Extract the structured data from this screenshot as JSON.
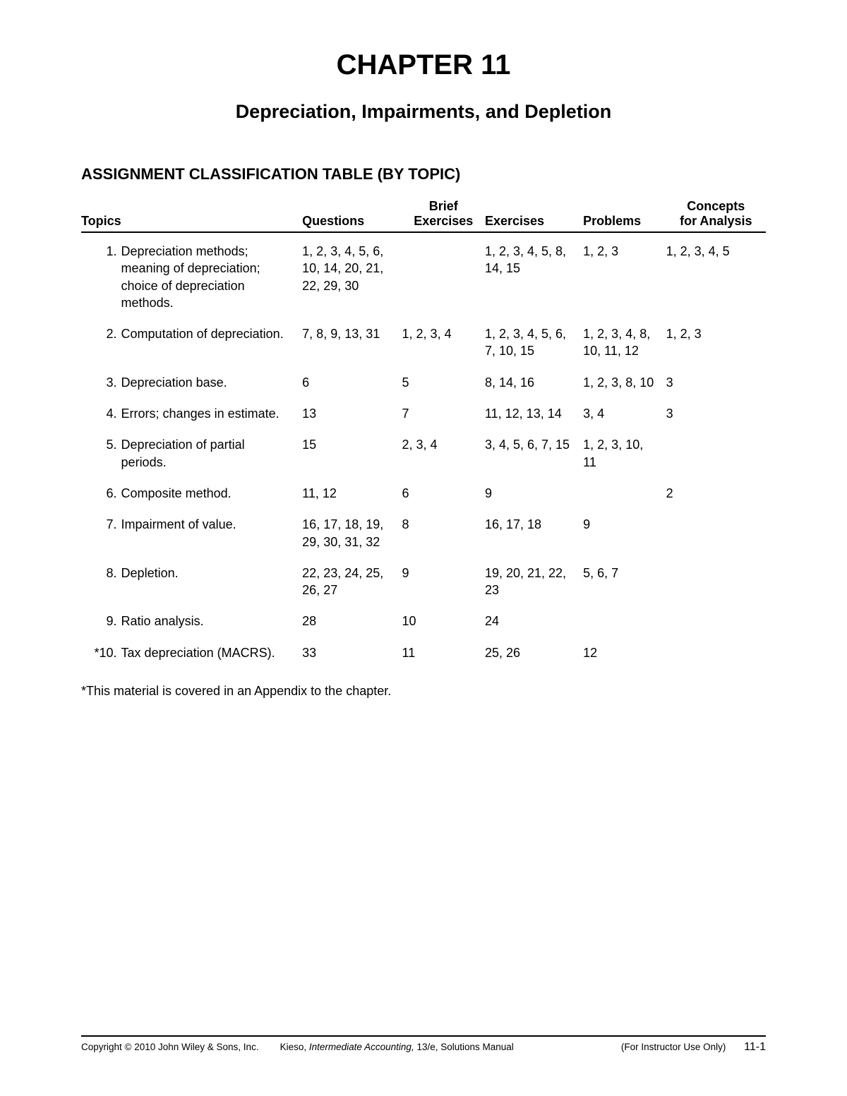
{
  "chapter_title": "CHAPTER 11",
  "chapter_subtitle": "Depreciation, Impairments, and Depletion",
  "section_title": "ASSIGNMENT CLASSIFICATION TABLE (BY TOPIC)",
  "columns": {
    "topics": "Topics",
    "questions": "Questions",
    "brief_exercises_top": "Brief",
    "brief_exercises_bottom": "Exercises",
    "exercises": "Exercises",
    "problems": "Problems",
    "concepts_top": "Concepts",
    "concepts_bottom": "for Analysis"
  },
  "rows": [
    {
      "num": "1.",
      "topic": "Depreciation methods; meaning of depreciation; choice of depreciation methods.",
      "questions": "1, 2, 3, 4, 5, 6, 10, 14, 20, 21, 22, 29, 30",
      "brief": "",
      "exercises": "1, 2, 3, 4, 5, 8, 14, 15",
      "problems": "1, 2, 3",
      "concepts": "1, 2, 3, 4, 5"
    },
    {
      "num": "2.",
      "topic": "Computation of depreciation.",
      "questions": "7, 8, 9, 13, 31",
      "brief": "1, 2, 3, 4",
      "exercises": "1, 2, 3, 4, 5, 6, 7, 10, 15",
      "problems": "1, 2, 3, 4, 8, 10, 11, 12",
      "concepts": "1, 2, 3"
    },
    {
      "num": "3.",
      "topic": "Depreciation base.",
      "questions": "6",
      "brief": "5",
      "exercises": "8, 14, 16",
      "problems": "1, 2, 3, 8, 10",
      "concepts": "3"
    },
    {
      "num": "4.",
      "topic": "Errors; changes in estimate.",
      "questions": "13",
      "brief": "7",
      "exercises": "11, 12, 13, 14",
      "problems": "3, 4",
      "concepts": "3"
    },
    {
      "num": "5.",
      "topic": "Depreciation of partial periods.",
      "questions": "15",
      "brief": "2, 3, 4",
      "exercises": "3, 4, 5, 6, 7, 15",
      "problems": "1, 2, 3, 10, 11",
      "concepts": ""
    },
    {
      "num": "6.",
      "topic": "Composite method.",
      "questions": "11, 12",
      "brief": "6",
      "exercises": "9",
      "problems": "",
      "concepts": "2"
    },
    {
      "num": "7.",
      "topic": "Impairment of value.",
      "questions": "16, 17, 18, 19, 29, 30, 31, 32",
      "brief": "8",
      "exercises": "16, 17, 18",
      "problems": "9",
      "concepts": ""
    },
    {
      "num": "8.",
      "topic": "Depletion.",
      "questions": "22, 23, 24, 25, 26, 27",
      "brief": "9",
      "exercises": "19, 20, 21, 22, 23",
      "problems": "5, 6, 7",
      "concepts": ""
    },
    {
      "num": "9.",
      "topic": "Ratio analysis.",
      "questions": "28",
      "brief": "10",
      "exercises": "24",
      "problems": "",
      "concepts": ""
    },
    {
      "num": "*10.",
      "topic": "Tax depreciation (MACRS).",
      "questions": "33",
      "brief": "11",
      "exercises": "25, 26",
      "problems": "12",
      "concepts": ""
    }
  ],
  "footnote": "*This material is covered in an Appendix to the chapter.",
  "footer": {
    "copyright": "Copyright © 2010 John Wiley & Sons, Inc.",
    "mid_prefix": "Kieso, ",
    "mid_italic": "Intermediate Accounting,",
    "mid_suffix": " 13/e, Solutions Manual",
    "right": "(For Instructor Use Only)",
    "page": "11-1"
  }
}
